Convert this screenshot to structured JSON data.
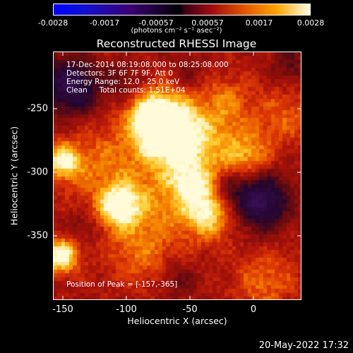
{
  "colorbar": {
    "ticks": [
      "-0.0028",
      "-0.0017",
      "-0.00057",
      "0.00057",
      "0.0017",
      "0.0028"
    ],
    "units": "(photons cm⁻² s⁻¹ asec⁻²)"
  },
  "title": "Reconstructed RHESSI Image",
  "info": {
    "line1": "17-Dec-2014 08:19:08.000 to 08:25:08.000",
    "line2": "Detectors: 3F 6F 7F 9F, Att 0",
    "line3": "Energy Range: 12.0 - 25.0 keV",
    "line4": "Clean     Total counts: 1.51E+04"
  },
  "peak": "Position of Peak = [-157,-365]",
  "x_axis": {
    "label": "Heliocentric X (arcsec)",
    "ticks": [
      "-150",
      "-100",
      "-50",
      "0"
    ],
    "range": [
      -155,
      40
    ]
  },
  "y_axis": {
    "label": "Heliocentric Y (arcsec)",
    "ticks": [
      "-250",
      "-300",
      "-350"
    ],
    "range": [
      -395,
      -200
    ]
  },
  "timestamp": "20-May-2022 17:32",
  "colormap": [
    "#0000ff",
    "#000000",
    "#a40d0d",
    "#e35a00",
    "#ffa400",
    "#fffde6"
  ]
}
